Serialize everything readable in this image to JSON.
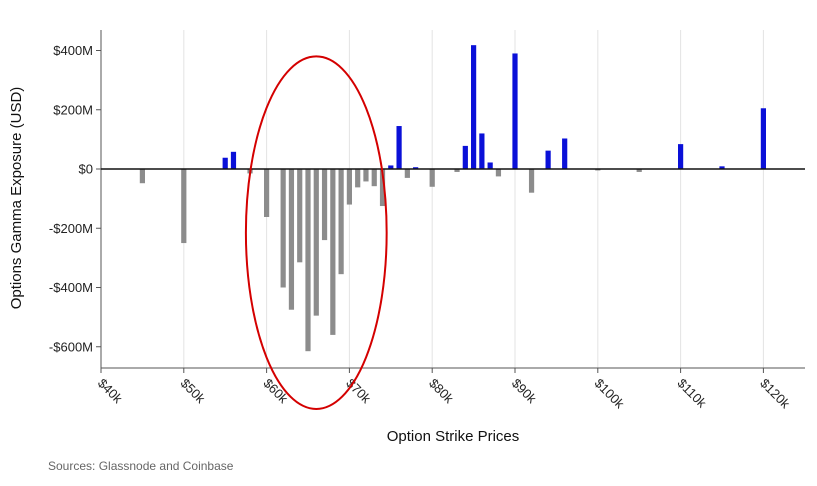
{
  "chart_data": {
    "type": "bar",
    "xlabel": "Option Strike Prices",
    "ylabel": "Options Gamma Exposure (USD)",
    "unit_x": "USD (thousands)",
    "unit_y": "USD",
    "xlim": [
      40,
      122
    ],
    "ylim": [
      -680,
      470
    ],
    "x_ticks": [
      40,
      50,
      60,
      70,
      80,
      90,
      100,
      110,
      120
    ],
    "x_tick_labels": [
      "$40k",
      "$50k",
      "$60k",
      "$70k",
      "$80k",
      "$90k",
      "$100k",
      "$110k",
      "$120k"
    ],
    "y_ticks": [
      400,
      200,
      0,
      -200,
      -400,
      -600
    ],
    "y_tick_labels": [
      "$400M",
      "$200M",
      "$0",
      "-$200M",
      "-$400M",
      "-$600M"
    ],
    "grid": "vertical",
    "series": [
      {
        "color": "#0a10d8",
        "x": [
          55,
          56,
          75,
          76,
          78,
          84,
          85,
          86,
          87,
          90,
          94,
          96,
          110,
          115,
          120
        ],
        "values": [
          38,
          58,
          12,
          145,
          6,
          78,
          418,
          120,
          22,
          390,
          62,
          103,
          84,
          9,
          205
        ]
      },
      {
        "color": "#8c8c8c",
        "x": [
          45,
          50,
          58,
          60,
          62,
          63,
          64,
          65,
          66,
          67,
          68,
          69,
          70,
          71,
          72,
          73,
          74,
          77,
          80,
          83,
          88,
          92,
          100,
          105
        ],
        "values": [
          -48,
          -250,
          -15,
          -162,
          -400,
          -475,
          -315,
          -615,
          -495,
          -240,
          -560,
          -355,
          -120,
          -62,
          -42,
          -58,
          -125,
          -30,
          -60,
          -10,
          -25,
          -80,
          -5,
          -10
        ]
      }
    ],
    "annotation": {
      "type": "ellipse",
      "color": "#d40000",
      "x_center": 66,
      "y_center": -215,
      "x_radius": 8.5,
      "y_radius": 595
    }
  },
  "source": "Sources: Glassnode and Coinbase"
}
